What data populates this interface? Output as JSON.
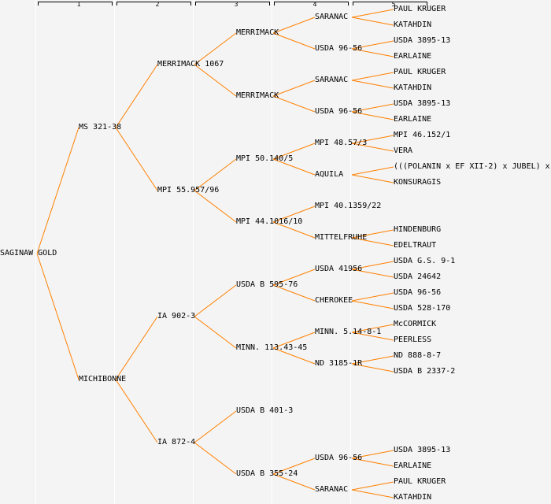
{
  "generation_headers": [
    "1",
    "2",
    "3",
    "4",
    "5"
  ],
  "line_color": "#ff8000",
  "tree": {
    "name": "SAGINAW GOLD",
    "parents": [
      {
        "name": "MS 321-38",
        "parents": [
          {
            "name": "MERRIMACK 1067",
            "parents": [
              {
                "name": "MERRIMACK",
                "parents": [
                  {
                    "name": "SARANAC",
                    "parents": [
                      {
                        "name": "PAUL KRUGER"
                      },
                      {
                        "name": "KATAHDIN"
                      }
                    ]
                  },
                  {
                    "name": "USDA 96-56",
                    "parents": [
                      {
                        "name": "USDA 3895-13"
                      },
                      {
                        "name": "EARLAINE"
                      }
                    ]
                  }
                ]
              },
              {
                "name": "MERRIMACK",
                "parents": [
                  {
                    "name": "SARANAC",
                    "parents": [
                      {
                        "name": "PAUL KRUGER"
                      },
                      {
                        "name": "KATAHDIN"
                      }
                    ]
                  },
                  {
                    "name": "USDA 96-56",
                    "parents": [
                      {
                        "name": "USDA 3895-13"
                      },
                      {
                        "name": "EARLAINE"
                      }
                    ]
                  }
                ]
              }
            ]
          },
          {
            "name": "MPI 55.957/96",
            "parents": [
              {
                "name": "MPI 50.140/5",
                "parents": [
                  {
                    "name": "MPI 48.57/3",
                    "parents": [
                      {
                        "name": "MPI 46.152/1"
                      },
                      {
                        "name": "VERA"
                      }
                    ]
                  },
                  {
                    "name": "AQUILA",
                    "parents": [
                      {
                        "name": "(((POLANIN x EF XII-2) x JUBEL) x"
                      },
                      {
                        "name": "KONSURAGIS"
                      }
                    ]
                  }
                ]
              },
              {
                "name": "MPI 44.1016/10",
                "parents": [
                  {
                    "name": "MPI 40.1359/22"
                  },
                  {
                    "name": "MITTELFRUHE",
                    "parents": [
                      {
                        "name": "HINDENBURG"
                      },
                      {
                        "name": "EDELTRAUT"
                      }
                    ]
                  }
                ]
              }
            ]
          }
        ]
      },
      {
        "name": "MICHIBONNE",
        "parents": [
          {
            "name": "IA 902-3",
            "parents": [
              {
                "name": "USDA B 595-76",
                "parents": [
                  {
                    "name": "USDA 41956",
                    "parents": [
                      {
                        "name": "USDA G.S. 9-1"
                      },
                      {
                        "name": "USDA 24642"
                      }
                    ]
                  },
                  {
                    "name": "CHEROKEE",
                    "parents": [
                      {
                        "name": "USDA 96-56"
                      },
                      {
                        "name": "USDA 528-170"
                      }
                    ]
                  }
                ]
              },
              {
                "name": "MINN. 113.43-45",
                "parents": [
                  {
                    "name": "MINN. 5.14-8-1",
                    "parents": [
                      {
                        "name": "McCORMICK"
                      },
                      {
                        "name": "PEERLESS"
                      }
                    ]
                  },
                  {
                    "name": "ND 3185-1R",
                    "parents": [
                      {
                        "name": "ND 888-8-7"
                      },
                      {
                        "name": "USDA B 2337-2"
                      }
                    ]
                  }
                ]
              }
            ]
          },
          {
            "name": "IA 872-4",
            "parents": [
              {
                "name": "USDA B 401-3"
              },
              {
                "name": "USDA B 355-24",
                "parents": [
                  {
                    "name": "USDA 96-56",
                    "parents": [
                      {
                        "name": "USDA 3895-13"
                      },
                      {
                        "name": "EARLAINE"
                      }
                    ]
                  },
                  {
                    "name": "SARANAC",
                    "parents": [
                      {
                        "name": "PAUL KRUGER"
                      },
                      {
                        "name": "KATAHDIN"
                      }
                    ]
                  }
                ]
              }
            ]
          }
        ]
      }
    ]
  }
}
